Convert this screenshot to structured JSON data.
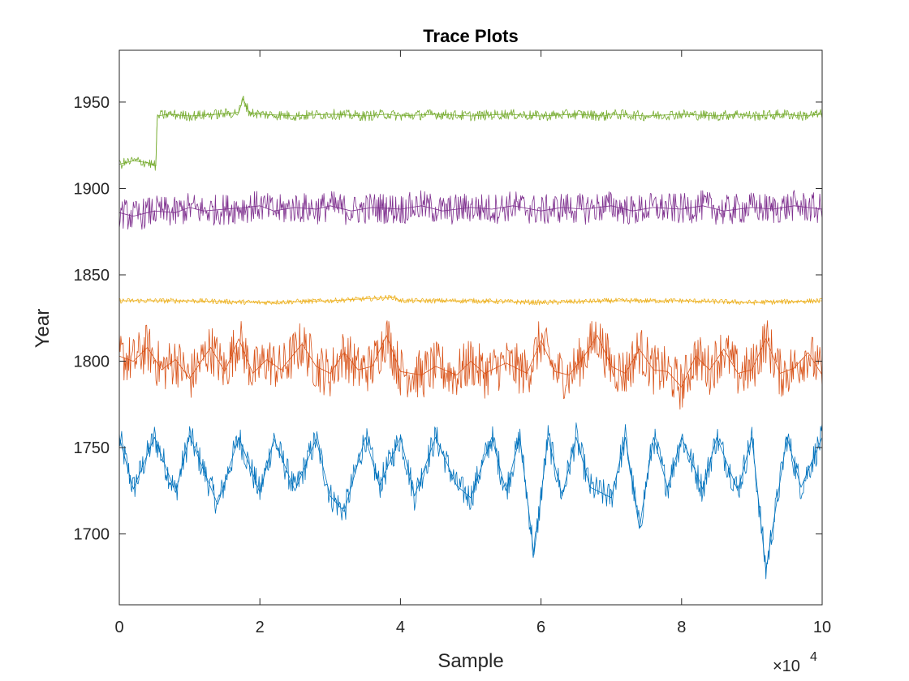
{
  "chart_data": {
    "type": "line",
    "title": "Trace Plots",
    "xlabel": "Sample",
    "ylabel": "Year",
    "x_exponent_label": "×10",
    "x_exponent_power": "4",
    "xlim": [
      0,
      100000
    ],
    "ylim": [
      1659,
      1980
    ],
    "x_ticks": [
      0,
      20000,
      40000,
      60000,
      80000,
      100000
    ],
    "x_tick_labels": [
      "0",
      "2",
      "4",
      "6",
      "8",
      "10"
    ],
    "y_ticks": [
      1700,
      1750,
      1800,
      1850,
      1900,
      1950
    ],
    "y_tick_labels": [
      "1700",
      "1750",
      "1800",
      "1850",
      "1900",
      "1950"
    ],
    "grid": false,
    "legend": "none",
    "series": [
      {
        "color": "#0072BD",
        "band": [
          1747,
          1764
        ],
        "x": [
          0,
          2000,
          5000,
          8000,
          10000,
          14000,
          17000,
          20000,
          22000,
          25000,
          28000,
          30000,
          32000,
          35000,
          37000,
          40000,
          42000,
          45000,
          48000,
          50000,
          53000,
          55000,
          57000,
          59000,
          61000,
          63000,
          65000,
          67000,
          70000,
          72000,
          74000,
          76000,
          78000,
          80000,
          83000,
          85000,
          88000,
          90000,
          92000,
          95000,
          97000,
          100000
        ],
        "y": [
          1756,
          1726,
          1756,
          1724,
          1757,
          1717,
          1756,
          1724,
          1755,
          1725,
          1755,
          1722,
          1713,
          1756,
          1728,
          1756,
          1722,
          1756,
          1728,
          1721,
          1756,
          1725,
          1756,
          1688,
          1756,
          1722,
          1756,
          1727,
          1721,
          1756,
          1703,
          1756,
          1727,
          1756,
          1726,
          1756,
          1725,
          1756,
          1679,
          1756,
          1727,
          1756
        ]
      },
      {
        "color": "#D95319",
        "band": [
          1786,
          1815
        ],
        "x": [
          0,
          2000,
          4000,
          6000,
          8000,
          10000,
          13000,
          15000,
          17000,
          19000,
          21000,
          23000,
          26000,
          28000,
          30000,
          32000,
          34000,
          36000,
          38000,
          40000,
          43000,
          45000,
          48000,
          50000,
          52000,
          55000,
          58000,
          60000,
          62000,
          64000,
          66000,
          68000,
          70000,
          72000,
          74000,
          76000,
          78000,
          80000,
          82000,
          84000,
          86000,
          88000,
          90000,
          92000,
          94000,
          96000,
          98000,
          100000
        ],
        "y": [
          1803,
          1800,
          1808,
          1795,
          1801,
          1790,
          1808,
          1794,
          1813,
          1793,
          1801,
          1795,
          1810,
          1797,
          1793,
          1805,
          1795,
          1797,
          1815,
          1794,
          1792,
          1797,
          1792,
          1800,
          1793,
          1799,
          1793,
          1812,
          1794,
          1792,
          1802,
          1815,
          1797,
          1793,
          1807,
          1795,
          1794,
          1785,
          1803,
          1795,
          1807,
          1793,
          1795,
          1813,
          1793,
          1796,
          1805,
          1792
        ]
      },
      {
        "color": "#EDB120",
        "band": [
          1833,
          1836
        ],
        "x": [
          0,
          10000,
          20000,
          30000,
          39000,
          40000,
          50000,
          60000,
          70000,
          80000,
          90000,
          100000
        ],
        "y": [
          1835,
          1835,
          1834,
          1835,
          1837,
          1835,
          1835,
          1834,
          1835,
          1835,
          1834,
          1835
        ]
      },
      {
        "color": "#7E2F8E",
        "band": [
          1880,
          1898
        ],
        "x": [
          0,
          2000,
          5000,
          8000,
          10000,
          12000,
          15000,
          18000,
          20000,
          22000,
          25000,
          28000,
          30000,
          33000,
          36000,
          40000,
          43000,
          46000,
          50000,
          53000,
          56000,
          60000,
          63000,
          66000,
          70000,
          73000,
          76000,
          80000,
          83000,
          86000,
          90000,
          93000,
          96000,
          100000
        ],
        "y": [
          1886,
          1884,
          1887,
          1886,
          1889,
          1887,
          1888,
          1889,
          1890,
          1887,
          1889,
          1888,
          1890,
          1887,
          1889,
          1888,
          1890,
          1887,
          1889,
          1888,
          1890,
          1887,
          1889,
          1888,
          1890,
          1887,
          1889,
          1888,
          1890,
          1887,
          1889,
          1888,
          1890,
          1888
        ]
      },
      {
        "color": "#77AC30",
        "band": [
          1939,
          1945
        ],
        "x": [
          0,
          2000,
          4000,
          5200,
          5400,
          7000,
          10000,
          14000,
          17000,
          17600,
          18500,
          20000,
          25000,
          30000,
          35000,
          38000,
          40000,
          45000,
          50000,
          55000,
          60000,
          65000,
          69000,
          70000,
          75000,
          80000,
          85000,
          88000,
          90000,
          95000,
          97000,
          100000
        ],
        "y": [
          1914,
          1916,
          1915,
          1913,
          1942,
          1943,
          1942,
          1943,
          1944,
          1952,
          1944,
          1943,
          1942,
          1943,
          1942,
          1943,
          1942,
          1943,
          1942,
          1943,
          1942,
          1943,
          1942,
          1943,
          1942,
          1943,
          1942,
          1943,
          1942,
          1943,
          1942,
          1943
        ]
      }
    ]
  }
}
